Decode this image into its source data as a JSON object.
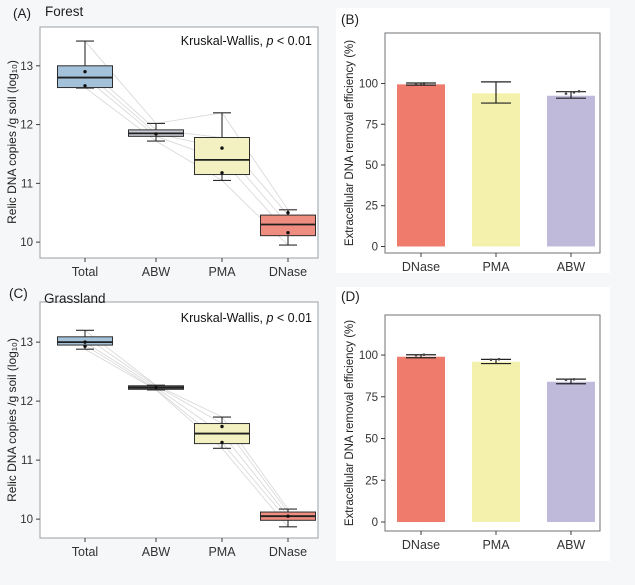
{
  "page": {
    "background": "#f5f7f8"
  },
  "chart_data": [
    {
      "id": "A",
      "type": "boxplot",
      "panel_label": "(A)",
      "title": "Forest",
      "annotation": {
        "prefix": "Kruskal-Wallis, ",
        "stat": "p",
        "rest": " < 0.01"
      },
      "ylabel": "Relic DNA copies /g soil (log₁₀)",
      "ylim": [
        9.73,
        13.66
      ],
      "yticks": [
        10,
        11,
        12,
        13
      ],
      "categories": [
        "Total",
        "ABW",
        "PMA",
        "DNase"
      ],
      "boxes": [
        {
          "category": "Total",
          "color": "#a3c2da",
          "whisker_low": 12.62,
          "q1": 12.63,
          "median": 12.8,
          "q3": 13.0,
          "whisker_high": 13.42,
          "points": [
            12.9,
            12.66
          ]
        },
        {
          "category": "ABW",
          "color": "#c9c9d4",
          "whisker_low": 11.72,
          "q1": 11.8,
          "median": 11.85,
          "q3": 11.91,
          "whisker_high": 12.02,
          "points": [
            11.84
          ]
        },
        {
          "category": "PMA",
          "color": "#f3f0c2",
          "whisker_low": 11.05,
          "q1": 11.15,
          "median": 11.4,
          "q3": 11.78,
          "whisker_high": 12.2,
          "points": [
            11.6,
            11.18
          ]
        },
        {
          "category": "DNase",
          "color": "#ef8e80",
          "whisker_low": 9.95,
          "q1": 10.11,
          "median": 10.3,
          "q3": 10.46,
          "whisker_high": 10.55,
          "points": [
            10.5,
            10.16
          ]
        }
      ],
      "sample_lines": [
        [
          13.42,
          12.02,
          12.2,
          10.55
        ],
        [
          13.0,
          11.91,
          11.78,
          10.46
        ],
        [
          12.9,
          11.85,
          11.6,
          10.3
        ],
        [
          12.8,
          11.8,
          11.4,
          10.16
        ],
        [
          12.63,
          11.72,
          11.05,
          9.95
        ]
      ]
    },
    {
      "id": "B",
      "type": "bar",
      "panel_label": "(B)",
      "ylabel": "Extracellular DNA removal efficiency (%)",
      "ylim": [
        -4,
        131
      ],
      "yticks": [
        0,
        25,
        50,
        75,
        100
      ],
      "categories": [
        "DNase",
        "PMA",
        "ABW"
      ],
      "bars": [
        {
          "category": "DNase",
          "color": "#ee7b6c",
          "value": 99.5,
          "err_low": 99.0,
          "err_high": 100.3,
          "points": [
            99.8,
            100.1
          ]
        },
        {
          "category": "PMA",
          "color": "#f4f1ad",
          "value": 94.0,
          "err_low": 88.0,
          "err_high": 101.0,
          "points": []
        },
        {
          "category": "ABW",
          "color": "#bfb9da",
          "value": 92.5,
          "err_low": 91.0,
          "err_high": 95.0,
          "points": [
            93.8,
            94.6,
            95.2
          ]
        }
      ]
    },
    {
      "id": "C",
      "type": "boxplot",
      "panel_label": "(C)",
      "title": "Grassland",
      "annotation": {
        "prefix": "Kruskal-Wallis, ",
        "stat": "p",
        "rest": " < 0.01"
      },
      "ylabel": "Relic DNA copies /g soil (log₁₀)",
      "ylim": [
        9.68,
        13.68
      ],
      "yticks": [
        10,
        11,
        12,
        13
      ],
      "categories": [
        "Total",
        "ABW",
        "PMA",
        "DNase"
      ],
      "boxes": [
        {
          "category": "Total",
          "color": "#a3c2da",
          "whisker_low": 12.88,
          "q1": 12.95,
          "median": 13.0,
          "q3": 13.09,
          "whisker_high": 13.2,
          "points": [
            13.0,
            12.93
          ]
        },
        {
          "category": "ABW",
          "color": "#6a6d75",
          "whisker_low": 12.19,
          "q1": 12.2,
          "median": 12.23,
          "q3": 12.26,
          "whisker_high": 12.27,
          "points": [
            12.23
          ]
        },
        {
          "category": "PMA",
          "color": "#f3f0c2",
          "whisker_low": 11.2,
          "q1": 11.28,
          "median": 11.45,
          "q3": 11.62,
          "whisker_high": 11.73,
          "points": [
            11.57,
            11.3
          ]
        },
        {
          "category": "DNase",
          "color": "#ef8e80",
          "whisker_low": 9.87,
          "q1": 9.98,
          "median": 10.05,
          "q3": 10.12,
          "whisker_high": 10.17,
          "points": [
            10.05
          ]
        }
      ],
      "sample_lines": [
        [
          13.2,
          12.27,
          11.73,
          10.17
        ],
        [
          13.09,
          12.26,
          11.62,
          10.12
        ],
        [
          13.0,
          12.23,
          11.45,
          10.05
        ],
        [
          12.95,
          12.2,
          11.3,
          9.98
        ],
        [
          12.88,
          12.19,
          11.2,
          9.87
        ]
      ]
    },
    {
      "id": "D",
      "type": "bar",
      "panel_label": "(D)",
      "ylabel": "Extracellular DNA removal efficiency (%)",
      "ylim": [
        -5.4,
        124
      ],
      "yticks": [
        0,
        25,
        50,
        75,
        100
      ],
      "categories": [
        "DNase",
        "PMA",
        "ABW"
      ],
      "bars": [
        {
          "category": "DNase",
          "color": "#ee7b6c",
          "value": 99.0,
          "err_low": 98.4,
          "err_high": 100.2,
          "points": [
            99.9,
            100.2
          ]
        },
        {
          "category": "PMA",
          "color": "#f4f1ad",
          "value": 96.0,
          "err_low": 94.9,
          "err_high": 97.4,
          "points": [
            97.2,
            97.5
          ]
        },
        {
          "category": "ABW",
          "color": "#bfb9da",
          "value": 84.0,
          "err_low": 82.8,
          "err_high": 85.6,
          "points": [
            85.2,
            85.5
          ]
        }
      ]
    }
  ]
}
